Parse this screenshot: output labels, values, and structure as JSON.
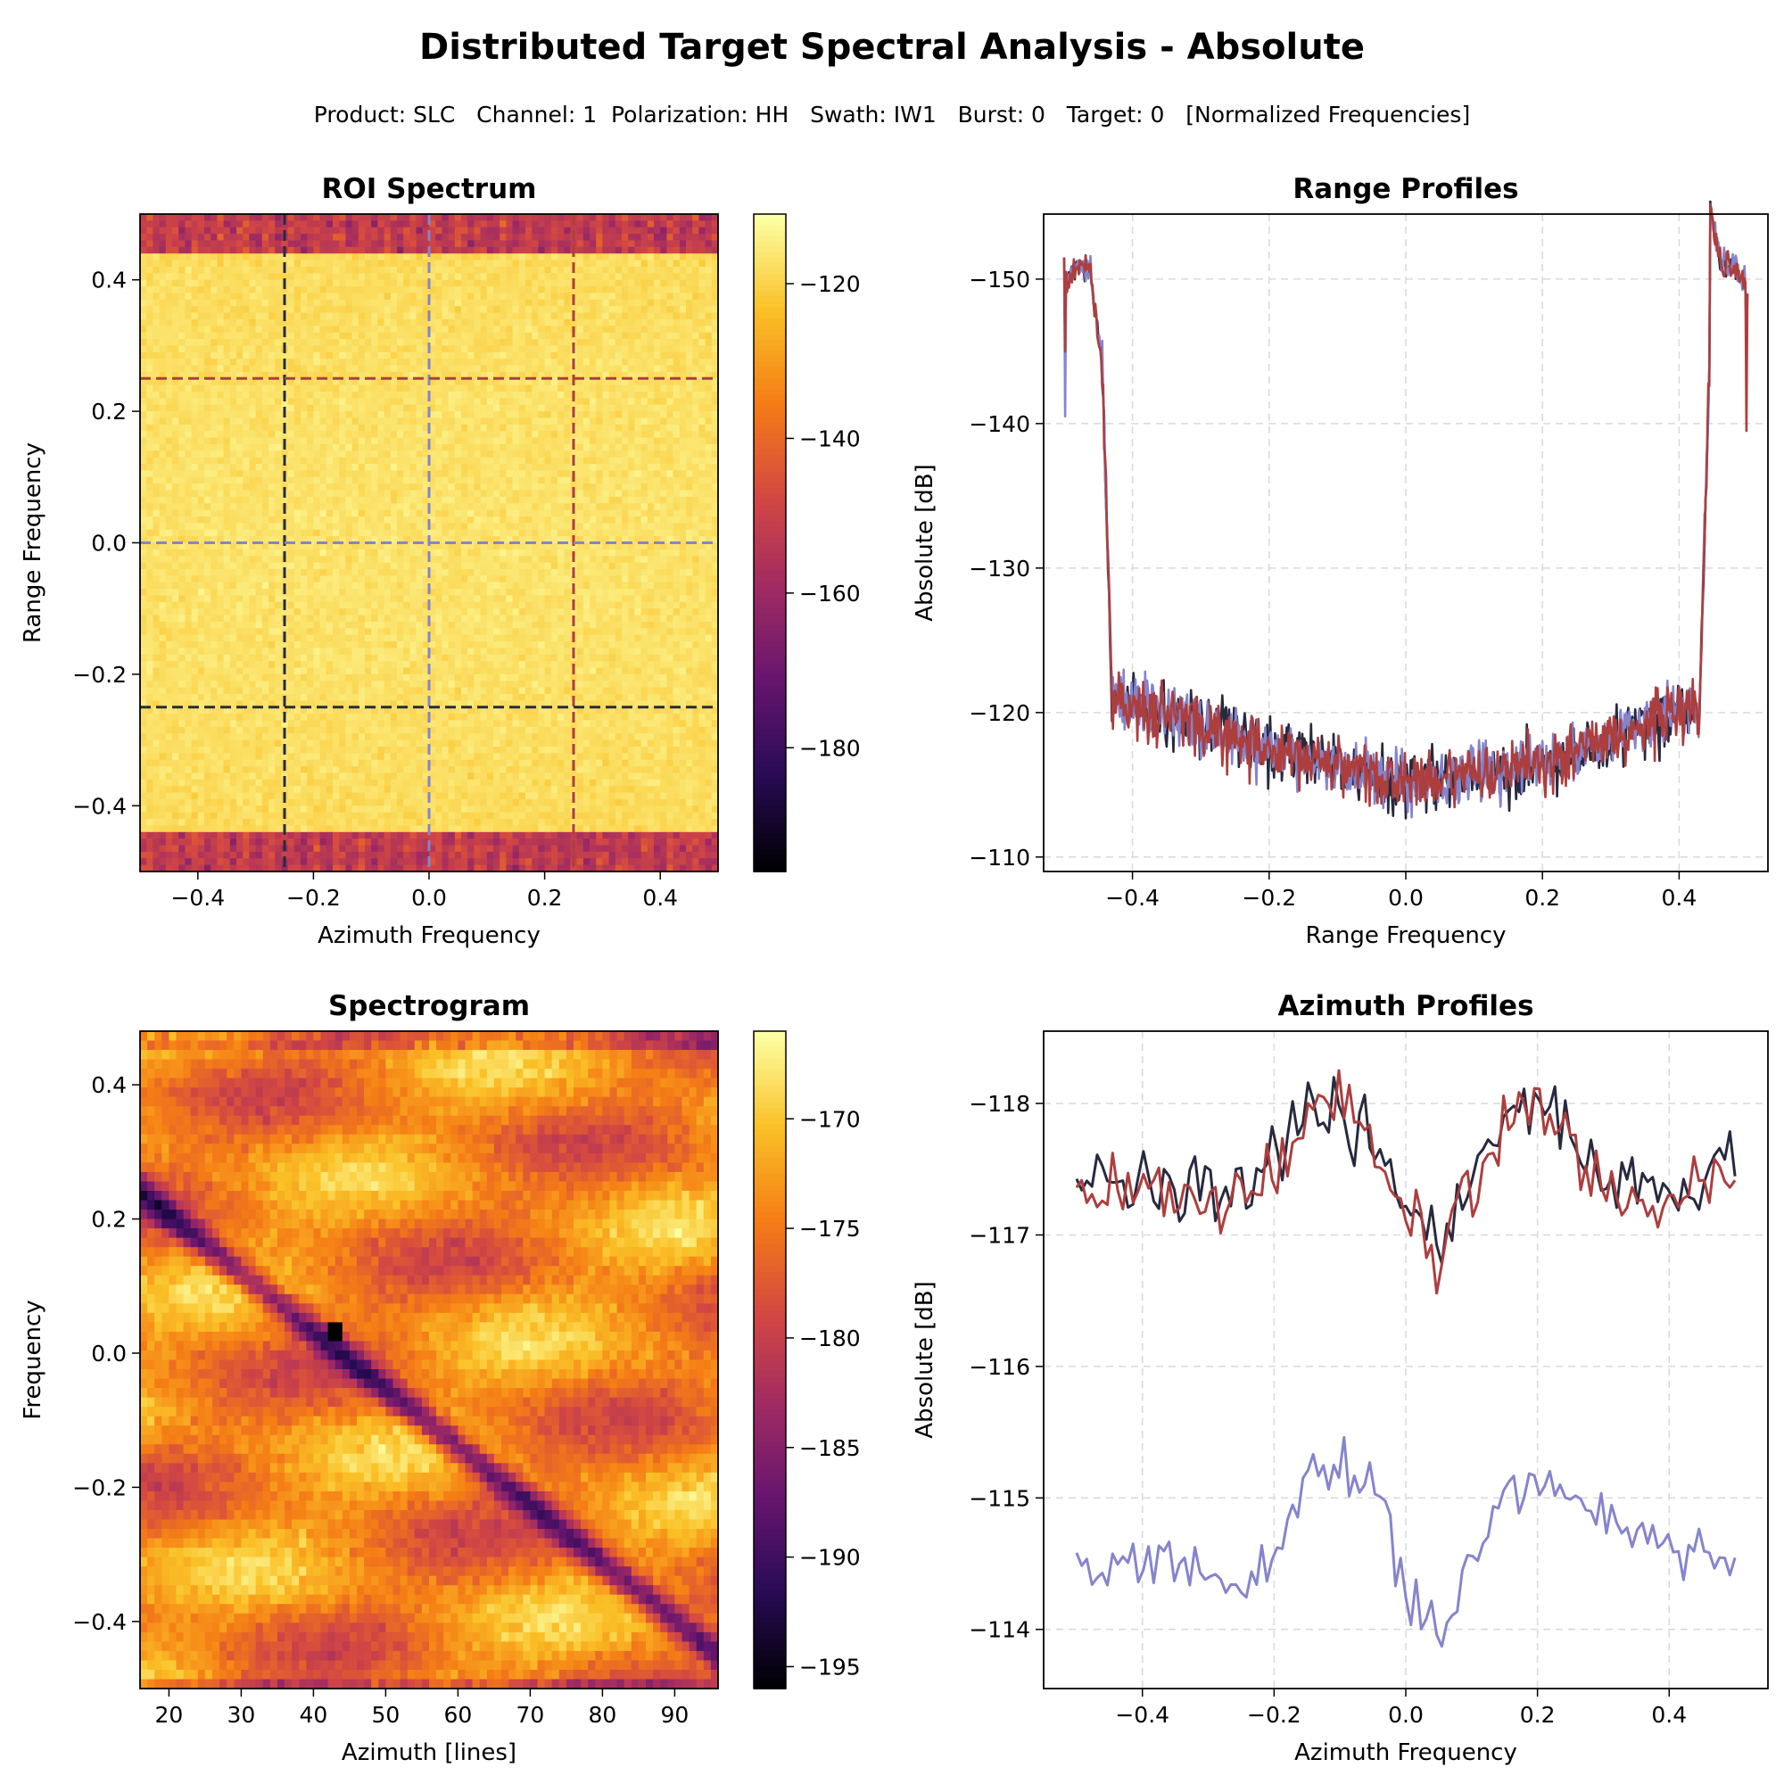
{
  "title": "Distributed Target Spectral Analysis - Absolute",
  "subtitle": "Product: SLC   Channel: 1  Polarization: HH   Swath: IW1   Burst: 0   Target: 0   [Normalized Frequencies]",
  "colors": {
    "series_dark": "#272a3f",
    "series_blue": "#8584cc",
    "series_red": "#ad3e3e",
    "grid": "#d9d9d9"
  },
  "chart_data": [
    {
      "type": "heatmap",
      "title": "ROI Spectrum",
      "xlabel": "Azimuth Frequency",
      "ylabel": "Range Frequency",
      "xlim": [
        -0.5,
        0.5
      ],
      "ylim": [
        0.5,
        -0.5
      ],
      "xticks": [
        -0.4,
        -0.2,
        0.0,
        0.2,
        0.4
      ],
      "xtick_labels": [
        "−0.4",
        "−0.2",
        "0.0",
        "0.2",
        "0.4"
      ],
      "yticks": [
        -0.4,
        -0.2,
        0.0,
        0.2,
        0.4
      ],
      "ytick_labels": [
        "−0.4",
        "−0.2",
        "0.0",
        "0.2",
        "0.4"
      ],
      "colormap": "inferno",
      "clim": [
        -196,
        -111
      ],
      "colorbar_ticks": [
        -120,
        -140,
        -160,
        -180
      ],
      "colorbar_tick_labels": [
        "−120",
        "−140",
        "−160",
        "−180"
      ],
      "band_edges": [
        -0.44,
        0.44
      ],
      "in_band_level": -120,
      "out_band_level": -152,
      "markers": [
        {
          "orientation": "vertical",
          "value": -0.25,
          "color": "#272a3f"
        },
        {
          "orientation": "vertical",
          "value": 0.0,
          "color": "#8584cc"
        },
        {
          "orientation": "vertical",
          "value": 0.25,
          "color": "#ad3e3e"
        },
        {
          "orientation": "horizontal",
          "value": -0.25,
          "color": "#272a3f"
        },
        {
          "orientation": "horizontal",
          "value": 0.0,
          "color": "#8584cc"
        },
        {
          "orientation": "horizontal",
          "value": 0.25,
          "color": "#ad3e3e"
        }
      ]
    },
    {
      "type": "line",
      "title": "Range Profiles",
      "xlabel": "Range Frequency",
      "ylabel": "Absolute [dB]",
      "xlim": [
        -0.53,
        0.53
      ],
      "ylim": [
        -154.5,
        -109
      ],
      "xticks": [
        -0.4,
        -0.2,
        0.0,
        0.2,
        0.4
      ],
      "xtick_labels": [
        "−0.4",
        "−0.2",
        "0.0",
        "0.2",
        "0.4"
      ],
      "yticks": [
        -110,
        -120,
        -130,
        -140,
        -150
      ],
      "ytick_labels": [
        "−110",
        "−120",
        "−130",
        "−140",
        "−150"
      ],
      "grid": true,
      "band_edges": [
        -0.44,
        0.44
      ],
      "envelope": {
        "x": [
          -0.43,
          -0.2,
          0.0,
          0.2,
          0.43
        ],
        "y": [
          -121,
          -117.5,
          -115,
          -116.5,
          -120.5
        ]
      },
      "edge_spikes": [
        {
          "x": -0.5,
          "y": -140.5
        },
        {
          "x": 0.5,
          "y": -139.5
        }
      ],
      "noise_amplitude_db": 1.8,
      "series": [
        {
          "color": "#272a3f",
          "offset": 0.0
        },
        {
          "color": "#8584cc",
          "offset": 0.0
        },
        {
          "color": "#ad3e3e",
          "offset": 0.0
        }
      ]
    },
    {
      "type": "heatmap",
      "title": "Spectrogram",
      "xlabel": "Azimuth [lines]",
      "ylabel": "Frequency",
      "xlim": [
        16,
        96
      ],
      "ylim": [
        0.48,
        -0.5
      ],
      "xticks": [
        20,
        30,
        40,
        50,
        60,
        70,
        80,
        90
      ],
      "xtick_labels": [
        "20",
        "30",
        "40",
        "50",
        "60",
        "70",
        "80",
        "90"
      ],
      "yticks": [
        -0.4,
        -0.2,
        0.0,
        0.2,
        0.4
      ],
      "ytick_labels": [
        "−0.4",
        "−0.2",
        "0.0",
        "0.2",
        "0.4"
      ],
      "colormap": "inferno",
      "clim": [
        -196,
        -166
      ],
      "colorbar_ticks": [
        -170,
        -175,
        -180,
        -185,
        -190,
        -195
      ],
      "colorbar_tick_labels": [
        "−170",
        "−175",
        "−180",
        "−185",
        "−190",
        "−195"
      ],
      "notch_line": {
        "from": [
          16,
          -0.26
        ],
        "to": [
          96,
          0.43
        ]
      },
      "minimum": {
        "x": 43,
        "y": -0.05,
        "value": -196
      }
    },
    {
      "type": "line",
      "title": "Azimuth Profiles",
      "xlabel": "Azimuth Frequency",
      "ylabel": "Absolute [dB]",
      "xlim": [
        -0.55,
        0.55
      ],
      "ylim": [
        -118.55,
        -113.55
      ],
      "xticks": [
        -0.4,
        -0.2,
        0.0,
        0.2,
        0.4
      ],
      "xtick_labels": [
        "−0.4",
        "−0.2",
        "0.0",
        "0.2",
        "0.4"
      ],
      "yticks": [
        -114,
        -115,
        -116,
        -117,
        -118
      ],
      "ytick_labels": [
        "−114",
        "−115",
        "−116",
        "−117",
        "−118"
      ],
      "grid": true,
      "x": [
        -0.5,
        -0.4,
        -0.3,
        -0.25,
        -0.2,
        -0.15,
        -0.1,
        -0.05,
        0.0,
        0.05,
        0.1,
        0.15,
        0.2,
        0.25,
        0.3,
        0.4,
        0.5
      ],
      "series": [
        {
          "color": "#8584cc",
          "y": [
            -114.45,
            -114.5,
            -114.5,
            -114.25,
            -114.6,
            -115.1,
            -115.2,
            -115.15,
            -114.3,
            -113.85,
            -114.5,
            -114.95,
            -115.2,
            -115.05,
            -114.9,
            -114.6,
            -114.6
          ],
          "noise": 0.18
        },
        {
          "color": "#272a3f",
          "y": [
            -117.4,
            -117.4,
            -117.3,
            -117.3,
            -117.55,
            -118.0,
            -118.0,
            -117.7,
            -117.3,
            -116.85,
            -117.4,
            -117.8,
            -118.05,
            -117.7,
            -117.5,
            -117.3,
            -117.55
          ],
          "noise": 0.25
        },
        {
          "color": "#ad3e3e",
          "y": [
            -117.4,
            -117.35,
            -117.3,
            -117.3,
            -117.5,
            -117.9,
            -118.0,
            -117.6,
            -117.2,
            -116.8,
            -117.35,
            -117.75,
            -118.0,
            -117.65,
            -117.3,
            -117.15,
            -117.6
          ],
          "noise": 0.25
        }
      ]
    }
  ]
}
